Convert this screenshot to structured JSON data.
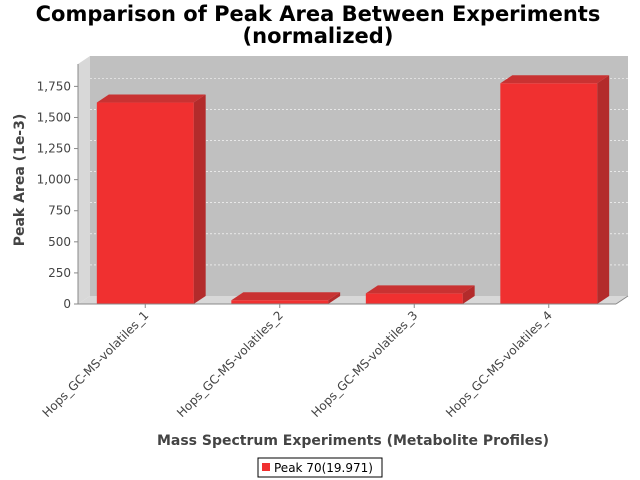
{
  "chart_data": {
    "type": "bar",
    "title_line1": "Comparison of Peak Area Between Experiments",
    "title_line2": "(normalized)",
    "xlabel": "Mass Spectrum Experiments (Metabolite Profiles)",
    "ylabel": "Peak Area (1e-3)",
    "categories": [
      "Hops_GC-MS-volatiles_1",
      "Hops_GC-MS-volatiles_2",
      "Hops_GC-MS-volatiles_3",
      "Hops_GC-MS-volatiles_4"
    ],
    "series": [
      {
        "name": "Peak 70(19.971)",
        "values": [
          1620,
          30,
          85,
          1775
        ],
        "color": "#f03030"
      }
    ],
    "y_ticks": [
      0,
      250,
      500,
      750,
      1000,
      1250,
      1500,
      1750
    ],
    "y_tick_labels": [
      "0",
      "250",
      "500",
      "750",
      "1,000",
      "1,250",
      "1,500",
      "1,750"
    ],
    "ylim": [
      0,
      1930
    ],
    "grid": true,
    "legend_position": "bottom",
    "plot_background": "#c0c0c0"
  }
}
